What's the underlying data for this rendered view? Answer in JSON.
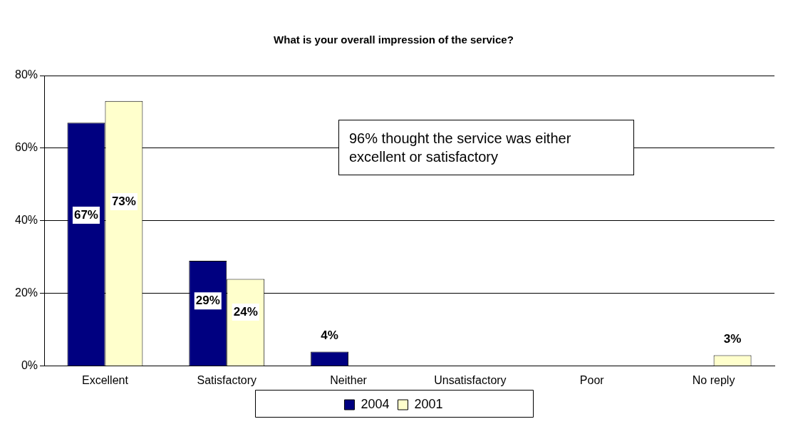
{
  "chart_data": {
    "type": "bar",
    "title": "What is your overall impression of the service?",
    "categories": [
      "Excellent",
      "Satisfactory",
      "Neither",
      "Unsatisfactory",
      "Poor",
      "No reply"
    ],
    "series": [
      {
        "name": "2004",
        "color": "#000080",
        "values": [
          67,
          29,
          4,
          0,
          0,
          0
        ],
        "value_labels": [
          "67%",
          "29%",
          "4%",
          null,
          null,
          null
        ]
      },
      {
        "name": "2001",
        "color": "#ffffcc",
        "values": [
          73,
          24,
          0,
          0,
          0,
          3
        ],
        "value_labels": [
          "73%",
          "24%",
          null,
          null,
          null,
          "3%"
        ]
      }
    ],
    "ylim": [
      0,
      80
    ],
    "yticks": [
      {
        "value": 0,
        "label": "0%"
      },
      {
        "value": 20,
        "label": "20%"
      },
      {
        "value": 40,
        "label": "40%"
      },
      {
        "value": 60,
        "label": "60%"
      },
      {
        "value": 80,
        "label": "80%"
      }
    ],
    "grid": "y",
    "legend": "bottom",
    "annotations": [
      "96% thought the service was either excellent or satisfactory"
    ]
  }
}
